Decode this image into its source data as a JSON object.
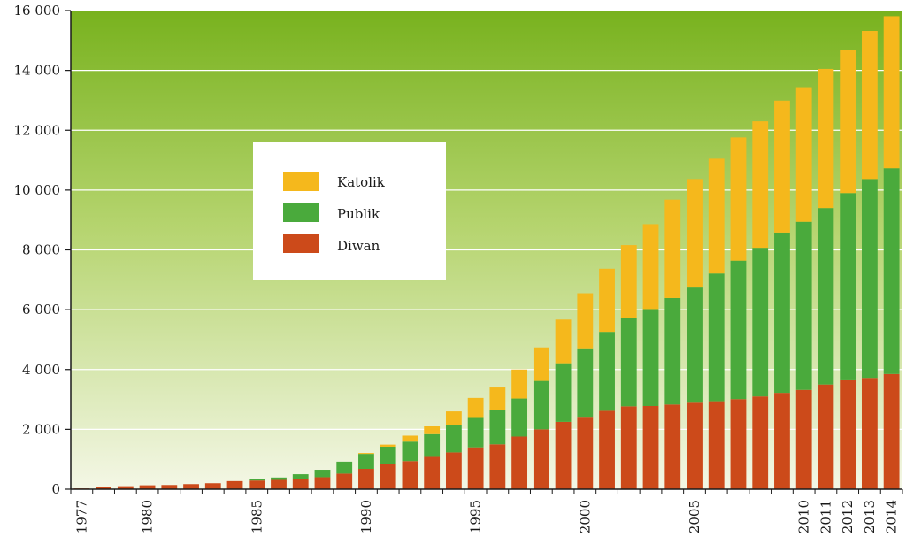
{
  "chart_data": {
    "type": "bar",
    "stacked": true,
    "categories": [
      "1977",
      "1978",
      "1979",
      "1980",
      "1981",
      "1982",
      "1983",
      "1984",
      "1985",
      "1986",
      "1987",
      "1988",
      "1989",
      "1990",
      "1991",
      "1992",
      "1993",
      "1994",
      "1995",
      "1996",
      "1997",
      "1998",
      "1999",
      "2000",
      "2001",
      "2002",
      "2003",
      "2004",
      "2005",
      "2006",
      "2007",
      "2008",
      "2009",
      "2010",
      "2011",
      "2012",
      "2013",
      "2014"
    ],
    "x_tick_labels": [
      "1977",
      "1980",
      "1985",
      "1990",
      "1995",
      "2000",
      "2005",
      "2010",
      "2011",
      "2012",
      "2013",
      "2014"
    ],
    "series": [
      {
        "name": "Diwan",
        "color": "#cc4a1a",
        "values": [
          25,
          70,
          100,
          130,
          140,
          170,
          200,
          270,
          290,
          310,
          350,
          400,
          520,
          680,
          830,
          940,
          1080,
          1230,
          1400,
          1500,
          1760,
          2000,
          2250,
          2420,
          2620,
          2770,
          2780,
          2830,
          2890,
          2940,
          3010,
          3100,
          3220,
          3320,
          3500,
          3640,
          3720,
          3850
        ]
      },
      {
        "name": "Publik",
        "color": "#4aaa3c",
        "values": [
          0,
          0,
          0,
          0,
          0,
          0,
          0,
          0,
          40,
          80,
          150,
          250,
          400,
          500,
          590,
          650,
          760,
          900,
          1010,
          1160,
          1270,
          1620,
          1960,
          2290,
          2640,
          2960,
          3240,
          3560,
          3850,
          4270,
          4630,
          4970,
          5360,
          5620,
          5900,
          6260,
          6650,
          6880
        ]
      },
      {
        "name": "Katolik",
        "color": "#f5b81c",
        "values": [
          0,
          0,
          0,
          0,
          0,
          0,
          0,
          0,
          0,
          0,
          0,
          0,
          0,
          30,
          70,
          200,
          260,
          470,
          640,
          740,
          970,
          1120,
          1460,
          1840,
          2110,
          2430,
          2840,
          3290,
          3630,
          3840,
          4120,
          4230,
          4410,
          4500,
          4650,
          4780,
          4950,
          5080
        ]
      }
    ],
    "ylim": [
      0,
      16000
    ],
    "y_ticks": [
      {
        "value": 0,
        "label": "0"
      },
      {
        "value": 2000,
        "label": "2 000"
      },
      {
        "value": 4000,
        "label": "4 000"
      },
      {
        "value": 6000,
        "label": "6 000"
      },
      {
        "value": 8000,
        "label": "8 000"
      },
      {
        "value": 10000,
        "label": "10 000"
      },
      {
        "value": 12000,
        "label": "12 000"
      },
      {
        "value": 14000,
        "label": "14 000"
      },
      {
        "value": 16000,
        "label": "16 000"
      }
    ],
    "legend": {
      "placement": "upper-left",
      "entries": [
        {
          "label": "Katolik",
          "color": "#f5b81c"
        },
        {
          "label": "Publik",
          "color": "#4aaa3c"
        },
        {
          "label": "Diwan",
          "color": "#cc4a1a"
        }
      ]
    },
    "background_gradient": [
      "#78b21e",
      "#f4f7e6"
    ],
    "grid": true
  }
}
